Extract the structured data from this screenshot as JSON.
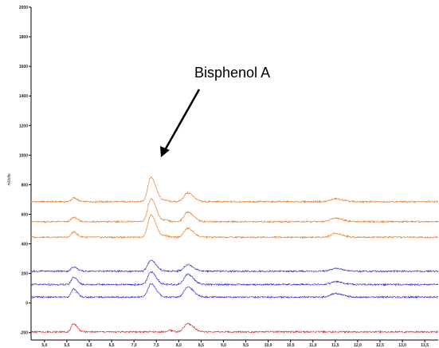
{
  "chart_data": {
    "type": "line",
    "ylabel": "mVolts",
    "xlabel": "",
    "xlim": [
      4.7,
      13.8
    ],
    "ylim": [
      -250,
      2000
    ],
    "x_ticks": [
      5.0,
      5.5,
      6.0,
      6.5,
      7.0,
      7.5,
      8.0,
      8.5,
      9.0,
      9.5,
      10.0,
      10.5,
      11.0,
      11.5,
      12.0,
      12.5,
      13.0,
      13.5
    ],
    "x_tick_labels": [
      "5,0",
      "5,5",
      "6,0",
      "6,5",
      "7,0",
      "7,5",
      "8,0",
      "8,5",
      "9,0",
      "9,5",
      "10,0",
      "10,5",
      "11,0",
      "11,5",
      "12,0",
      "12,5",
      "13,0",
      "13,5"
    ],
    "y_ticks": [
      -200,
      0,
      200,
      400,
      600,
      800,
      1000,
      1200,
      1400,
      1600,
      1800,
      2000
    ],
    "y_tick_labels": [
      "-200",
      "0",
      "200",
      "400",
      "600",
      "800",
      "1000",
      "1200",
      "1400",
      "1600",
      "1800",
      "2000"
    ],
    "annotation": {
      "text": "Bisphenol A",
      "x": 7.4,
      "y": 850
    },
    "series": [
      {
        "color": "#e8731e",
        "baseline": 685,
        "peaks": [
          [
            5.65,
            25,
            0.05
          ],
          [
            7.38,
            165,
            0.07
          ],
          [
            7.7,
            10,
            0.04
          ],
          [
            8.2,
            60,
            0.08
          ],
          [
            11.5,
            20,
            0.1
          ]
        ]
      },
      {
        "color": "#e8731e",
        "baseline": 550,
        "peaks": [
          [
            5.65,
            30,
            0.05
          ],
          [
            7.38,
            155,
            0.07
          ],
          [
            7.7,
            10,
            0.04
          ],
          [
            8.2,
            65,
            0.08
          ],
          [
            11.5,
            25,
            0.1
          ]
        ]
      },
      {
        "color": "#e8731e",
        "baseline": 445,
        "peaks": [
          [
            5.65,
            35,
            0.05
          ],
          [
            7.38,
            150,
            0.07
          ],
          [
            7.7,
            10,
            0.04
          ],
          [
            8.2,
            60,
            0.08
          ],
          [
            11.5,
            25,
            0.1
          ]
        ]
      },
      {
        "color": "#2323c8",
        "baseline": 215,
        "peaks": [
          [
            5.65,
            30,
            0.05
          ],
          [
            7.38,
            75,
            0.07
          ],
          [
            8.2,
            45,
            0.08
          ],
          [
            11.5,
            20,
            0.1
          ]
        ]
      },
      {
        "color": "#2323c8",
        "baseline": 125,
        "peaks": [
          [
            5.65,
            50,
            0.05
          ],
          [
            7.38,
            85,
            0.07
          ],
          [
            8.2,
            70,
            0.08
          ],
          [
            11.5,
            20,
            0.1
          ]
        ]
      },
      {
        "color": "#2323c8",
        "baseline": 40,
        "peaks": [
          [
            5.65,
            55,
            0.05
          ],
          [
            7.38,
            90,
            0.07
          ],
          [
            8.2,
            70,
            0.08
          ],
          [
            11.5,
            25,
            0.1
          ]
        ]
      },
      {
        "color": "#d81e1e",
        "baseline": -195,
        "peaks": [
          [
            5.65,
            55,
            0.05
          ],
          [
            8.2,
            55,
            0.08
          ],
          [
            7.8,
            10,
            0.05
          ]
        ]
      }
    ],
    "grid": false,
    "legend": "none"
  }
}
